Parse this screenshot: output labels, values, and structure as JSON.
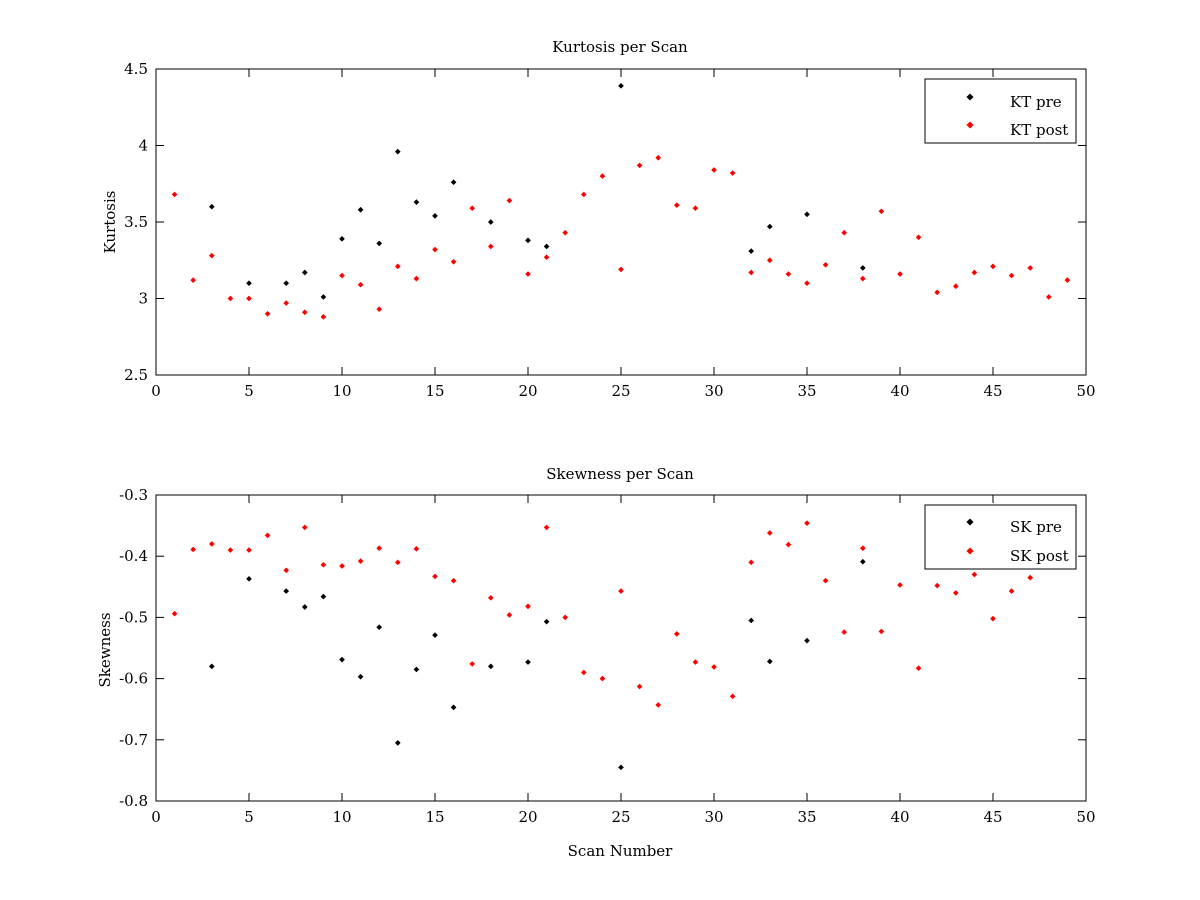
{
  "chart_data": [
    {
      "type": "scatter",
      "title": "Kurtosis per Scan",
      "xlabel": "",
      "ylabel": "Kurtosis",
      "xlim": [
        0,
        50
      ],
      "ylim": [
        2.5,
        4.5
      ],
      "xticks": [
        "0",
        "5",
        "10",
        "15",
        "20",
        "25",
        "30",
        "35",
        "40",
        "45",
        "50"
      ],
      "xtick_values": [
        0,
        5,
        10,
        15,
        20,
        25,
        30,
        35,
        40,
        45,
        50
      ],
      "yticks": [
        "2.5",
        "3",
        "3.5",
        "4",
        "4.5"
      ],
      "ytick_values": [
        2.5,
        3,
        3.5,
        4,
        4.5
      ],
      "grid": false,
      "legend_position": "top-right",
      "series": [
        {
          "name": "KT pre",
          "color": "#000000",
          "x": [
            3,
            5,
            7,
            8,
            9,
            10,
            11,
            12,
            13,
            14,
            15,
            16,
            18,
            20,
            21,
            25,
            32,
            33,
            35,
            38
          ],
          "y": [
            3.6,
            3.1,
            3.1,
            3.17,
            3.01,
            3.39,
            3.58,
            3.36,
            3.96,
            3.63,
            3.54,
            3.76,
            3.5,
            3.38,
            3.34,
            4.39,
            3.31,
            3.47,
            3.55,
            3.2
          ]
        },
        {
          "name": "KT post",
          "color": "#ff0000",
          "x": [
            1,
            2,
            3,
            4,
            5,
            6,
            7,
            8,
            9,
            10,
            11,
            12,
            13,
            14,
            15,
            16,
            17,
            18,
            19,
            20,
            21,
            22,
            23,
            24,
            25,
            26,
            27,
            28,
            29,
            30,
            31,
            32,
            33,
            34,
            35,
            36,
            37,
            38,
            39,
            40,
            41,
            42,
            43,
            44,
            45,
            46,
            47,
            48,
            49
          ],
          "y": [
            3.68,
            3.12,
            3.28,
            3.0,
            3.0,
            2.9,
            2.97,
            2.91,
            2.88,
            3.15,
            3.09,
            2.93,
            3.21,
            3.13,
            3.32,
            3.24,
            3.59,
            3.34,
            3.64,
            3.16,
            3.27,
            3.43,
            3.68,
            3.8,
            3.19,
            3.87,
            3.92,
            3.61,
            3.59,
            3.84,
            3.82,
            3.17,
            3.25,
            3.16,
            3.1,
            3.22,
            3.43,
            3.13,
            3.57,
            3.16,
            3.4,
            3.04,
            3.08,
            3.17,
            3.21,
            3.15,
            3.2,
            3.01,
            3.12
          ]
        }
      ]
    },
    {
      "type": "scatter",
      "title": "Skewness per Scan",
      "xlabel": "Scan Number",
      "ylabel": "Skewness",
      "xlim": [
        0,
        50
      ],
      "ylim": [
        -0.8,
        -0.3
      ],
      "xticks": [
        "0",
        "5",
        "10",
        "15",
        "20",
        "25",
        "30",
        "35",
        "40",
        "45",
        "50"
      ],
      "xtick_values": [
        0,
        5,
        10,
        15,
        20,
        25,
        30,
        35,
        40,
        45,
        50
      ],
      "yticks": [
        "-0.8",
        "-0.7",
        "-0.6",
        "-0.5",
        "-0.4",
        "-0.3"
      ],
      "ytick_values": [
        -0.8,
        -0.7,
        -0.6,
        -0.5,
        -0.4,
        -0.3
      ],
      "grid": false,
      "legend_position": "top-right",
      "series": [
        {
          "name": "SK pre",
          "color": "#000000",
          "x": [
            3,
            5,
            7,
            8,
            9,
            10,
            11,
            12,
            13,
            14,
            15,
            16,
            18,
            20,
            21,
            25,
            32,
            33,
            35,
            38
          ],
          "y": [
            -0.58,
            -0.437,
            -0.457,
            -0.483,
            -0.466,
            -0.569,
            -0.597,
            -0.516,
            -0.705,
            -0.585,
            -0.529,
            -0.647,
            -0.58,
            -0.573,
            -0.507,
            -0.745,
            -0.505,
            -0.572,
            -0.538,
            -0.409
          ]
        },
        {
          "name": "SK post",
          "color": "#ff0000",
          "x": [
            1,
            2,
            3,
            4,
            5,
            6,
            7,
            8,
            9,
            10,
            11,
            12,
            13,
            14,
            15,
            16,
            17,
            18,
            19,
            20,
            21,
            22,
            23,
            24,
            25,
            26,
            27,
            28,
            29,
            30,
            31,
            32,
            33,
            34,
            35,
            36,
            37,
            38,
            39,
            40,
            41,
            42,
            43,
            44,
            45,
            46,
            47
          ],
          "y": [
            -0.494,
            -0.389,
            -0.38,
            -0.39,
            -0.39,
            -0.366,
            -0.423,
            -0.353,
            -0.414,
            -0.416,
            -0.408,
            -0.387,
            -0.41,
            -0.388,
            -0.433,
            -0.44,
            -0.576,
            -0.468,
            -0.496,
            -0.482,
            -0.353,
            -0.5,
            -0.59,
            -0.6,
            -0.457,
            -0.613,
            -0.643,
            -0.527,
            -0.573,
            -0.581,
            -0.629,
            -0.41,
            -0.362,
            -0.381,
            -0.346,
            -0.44,
            -0.524,
            -0.387,
            -0.523,
            -0.447,
            -0.583,
            -0.448,
            -0.46,
            -0.43,
            -0.502,
            -0.457,
            -0.435
          ]
        }
      ]
    }
  ]
}
